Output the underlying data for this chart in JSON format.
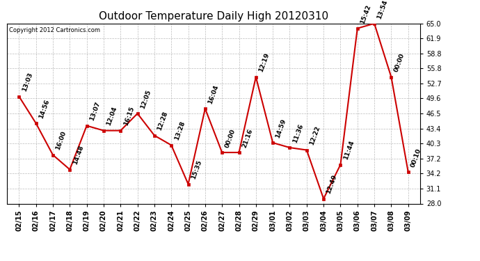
{
  "title": "Outdoor Temperature Daily High 20120310",
  "copyright_text": "Copyright 2012 Cartronics.com",
  "dates": [
    "02/15",
    "02/16",
    "02/17",
    "02/18",
    "02/19",
    "02/20",
    "02/21",
    "02/22",
    "02/23",
    "02/24",
    "02/25",
    "02/26",
    "02/27",
    "02/28",
    "02/29",
    "03/01",
    "03/02",
    "03/03",
    "03/04",
    "03/05",
    "03/06",
    "03/07",
    "03/08",
    "03/09"
  ],
  "values": [
    50.0,
    44.5,
    38.0,
    35.0,
    44.0,
    43.0,
    43.0,
    46.5,
    42.0,
    40.0,
    32.0,
    47.5,
    38.5,
    38.5,
    54.0,
    40.5,
    39.5,
    39.0,
    29.0,
    36.0,
    64.0,
    65.0,
    54.0,
    34.5
  ],
  "time_labels": [
    "13:03",
    "14:56",
    "16:00",
    "14:48",
    "13:07",
    "12:04",
    "16:15",
    "12:05",
    "12:28",
    "13:28",
    "15:35",
    "16:04",
    "00:00",
    "21:16",
    "12:19",
    "14:59",
    "11:36",
    "12:22",
    "12:49",
    "11:44",
    "15:42",
    "13:54",
    "00:00",
    "00:10"
  ],
  "ylim": [
    28.0,
    65.0
  ],
  "yticks": [
    28.0,
    31.1,
    34.2,
    37.2,
    40.3,
    43.4,
    46.5,
    49.6,
    52.7,
    55.8,
    58.8,
    61.9,
    65.0
  ],
  "line_color": "#cc0000",
  "marker_color": "#cc0000",
  "bg_color": "#ffffff",
  "grid_color": "#bbbbbb",
  "title_fontsize": 11,
  "tick_fontsize": 7,
  "annotation_fontsize": 6.5
}
